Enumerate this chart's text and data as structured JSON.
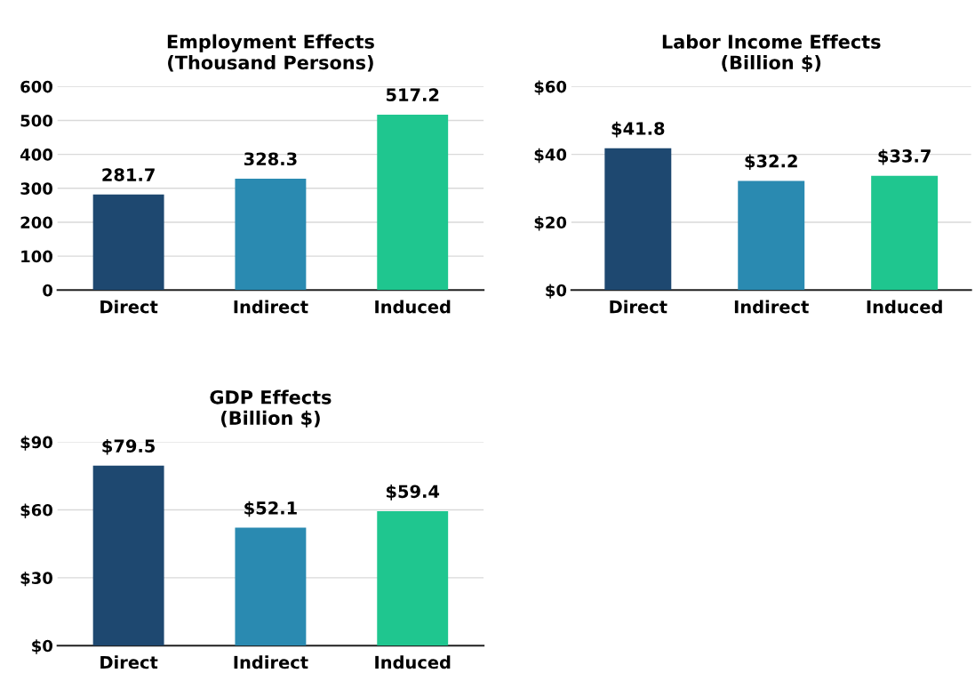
{
  "chart_data": [
    {
      "type": "bar",
      "title": "Employment Effects\n(Thousand Persons)",
      "categories": [
        "Direct",
        "Indirect",
        "Induced"
      ],
      "values": [
        281.7,
        328.3,
        517.2
      ],
      "colors": [
        "#1e4870",
        "#2a8ab1",
        "#1fc68f"
      ],
      "ylim": [
        0,
        600
      ],
      "yticks": [
        0,
        100,
        200,
        300,
        400,
        500,
        600
      ],
      "grid": "y",
      "data_labels": true
    },
    {
      "type": "bar",
      "title": "Labor Income Effects\n(Billion $)",
      "categories": [
        "Direct",
        "Indirect",
        "Induced"
      ],
      "values": [
        41.8,
        32.2,
        33.7
      ],
      "value_labels": [
        "$41.8",
        "$32.2",
        "$33.7"
      ],
      "colors": [
        "#1e4870",
        "#2a8ab1",
        "#1fc68f"
      ],
      "ylim": [
        0,
        60
      ],
      "yticks": [
        {
          "value": 0,
          "label": "$0"
        },
        {
          "value": 20,
          "label": "$20"
        },
        {
          "value": 40,
          "label": "$40"
        },
        {
          "value": 60,
          "label": "$60"
        }
      ],
      "grid": "y"
    },
    {
      "type": "bar",
      "title": "GDP Effects\n(Billion $)",
      "categories": [
        "Direct",
        "Indirect",
        "Induced"
      ],
      "values": [
        79.5,
        52.1,
        59.4
      ],
      "value_labels": [
        "$79.5",
        "$52.1",
        "$59.4"
      ],
      "colors": [
        "#1e4870",
        "#2a8ab1",
        "#1fc68f"
      ],
      "ylim": [
        0,
        90
      ],
      "yticks": [
        {
          "value": 0,
          "label": "$0"
        },
        {
          "value": 30,
          "label": "$30"
        },
        {
          "value": 60,
          "label": "$60"
        },
        {
          "value": 90,
          "label": "$90"
        }
      ],
      "grid": "y"
    }
  ]
}
